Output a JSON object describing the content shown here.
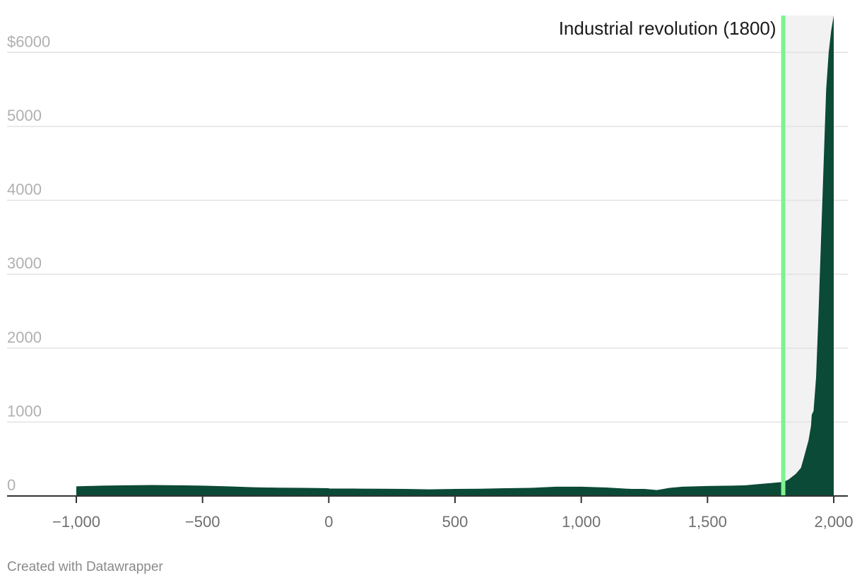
{
  "chart_data": {
    "type": "area",
    "title": "",
    "xlabel": "",
    "ylabel": "",
    "xlim": [
      -1000,
      2000
    ],
    "ylim": [
      0,
      6500
    ],
    "x_ticks": [
      -1000,
      -500,
      0,
      500,
      1000,
      1500,
      2000
    ],
    "x_tick_labels": [
      "−1,000",
      "−500",
      "0",
      "500",
      "1,000",
      "1,500",
      "2,000"
    ],
    "y_ticks": [
      0,
      1000,
      2000,
      3000,
      4000,
      5000,
      6000
    ],
    "y_tick_labels": [
      "0",
      "1000",
      "2000",
      "3000",
      "4000",
      "5000",
      "$6000"
    ],
    "grid": true,
    "colors": {
      "area": "#0b4a36",
      "highlight_band": "#f2f2f2",
      "event_line": "#7ef28f",
      "gridline": "#e2e2e2",
      "baseline": "#333333"
    },
    "series": [
      {
        "x": [
          -1000,
          -900,
          -800,
          -700,
          -600,
          -500,
          -400,
          -300,
          -200,
          -100,
          0,
          1,
          100,
          200,
          300,
          400,
          500,
          600,
          700,
          800,
          900,
          1000,
          1100,
          1200,
          1250,
          1300,
          1350,
          1400,
          1500,
          1600,
          1650,
          1700,
          1750,
          1800,
          1820,
          1850,
          1870,
          1880,
          1900,
          1910,
          1913,
          1920,
          1930,
          1940,
          1950,
          1960,
          1970,
          1980,
          1990,
          2000
        ],
        "y": [
          130,
          140,
          145,
          148,
          145,
          140,
          130,
          118,
          112,
          110,
          105,
          100,
          100,
          98,
          95,
          90,
          95,
          98,
          105,
          110,
          125,
          125,
          115,
          95,
          95,
          80,
          110,
          125,
          135,
          140,
          145,
          160,
          175,
          190,
          220,
          300,
          380,
          500,
          750,
          950,
          1100,
          1150,
          1600,
          2500,
          3500,
          4500,
          5500,
          6000,
          6300,
          6500
        ]
      }
    ],
    "annotations": [
      {
        "label": "Industrial revolution (1800)",
        "x": 1800,
        "highlight_range": [
          1800,
          2000
        ]
      }
    ]
  },
  "footer": {
    "credit": "Created with Datawrapper"
  }
}
